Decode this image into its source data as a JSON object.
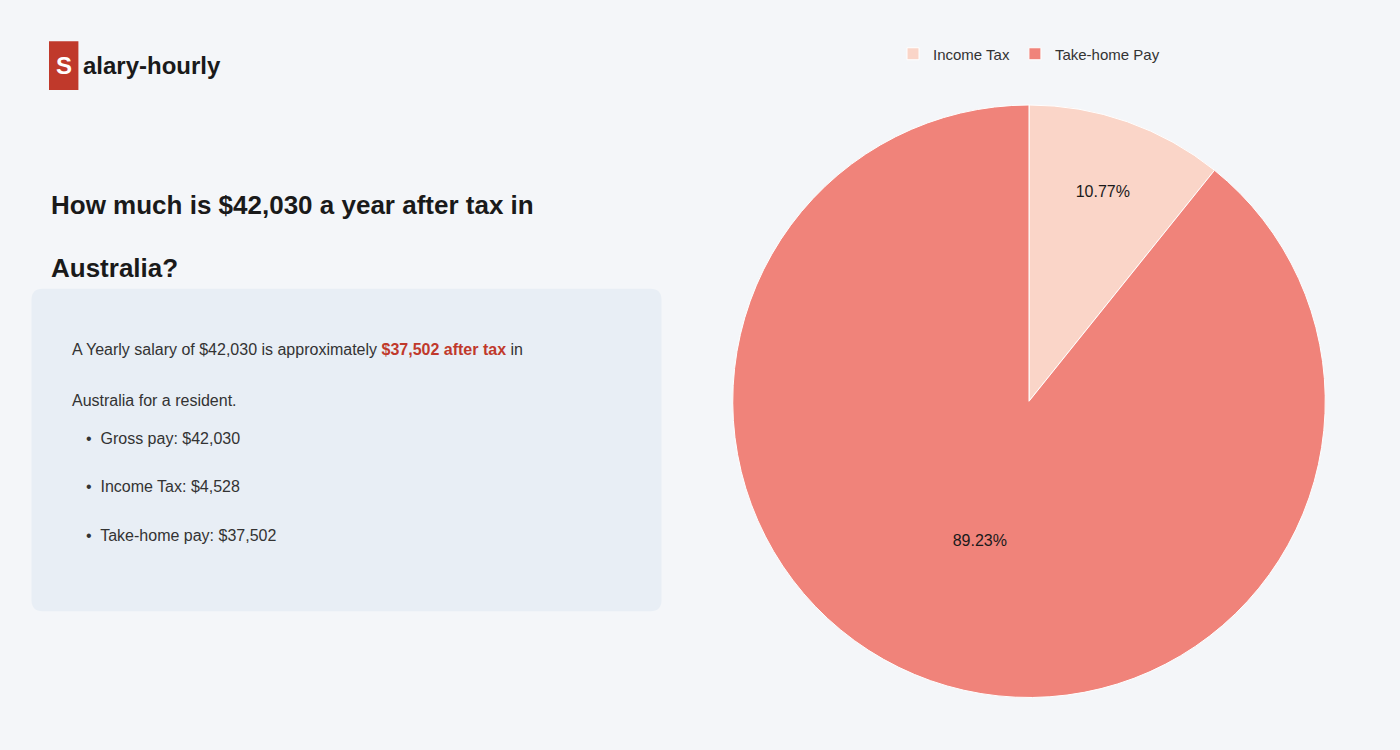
{
  "chart_data": {
    "type": "pie",
    "title": [
      "How much is $42,030 a year after tax in",
      "Australia?"
    ],
    "categories": [
      "Income Tax",
      "Take-home Pay"
    ],
    "values": [
      10.77,
      89.23
    ],
    "value_labels": [
      "10.77%",
      "89.23%"
    ],
    "colors": [
      "#fad5c8",
      "#f0837a"
    ],
    "data_labels": true,
    "legend": "upper center",
    "annotations": [
      {
        "text": "S",
        "color": "#c0392b"
      },
      {
        "text": "alary-hourly"
      },
      {
        "text": "A Yearly salary of $42,030 is approximately "
      },
      {
        "text": "$37,502 after tax",
        "color": "#c0392b"
      },
      {
        "text": " in"
      },
      {
        "text": "Australia for a resident."
      },
      {
        "text": "•  Gross pay: $42,030"
      },
      {
        "text": "•  Income Tax: $4,528"
      },
      {
        "text": "•  Take-home pay: $37,502"
      }
    ]
  }
}
